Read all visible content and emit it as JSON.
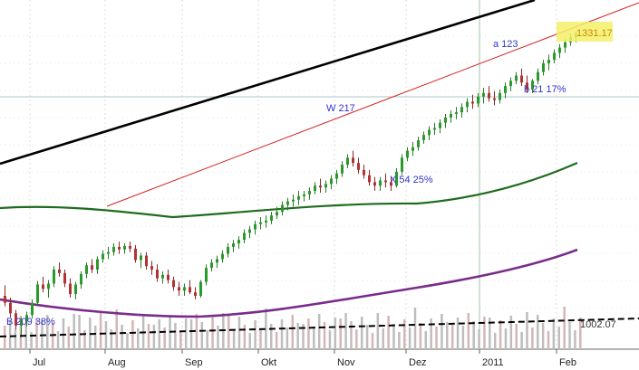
{
  "chart_data": {
    "type": "candlestick",
    "y_scale": {
      "price_top": 1331.17,
      "price_bottom": 1002.07
    },
    "x_ticks": [
      "Jul",
      "Aug",
      "Sep",
      "Okt",
      "Nov",
      "Dez",
      "2011",
      "Feb"
    ],
    "annotations": [
      {
        "id": "b209",
        "text": "B 209 38%"
      },
      {
        "id": "w217",
        "text": "W 217"
      },
      {
        "id": "x54",
        "text": "X 54 25%"
      },
      {
        "id": "a123",
        "text": "a 123"
      },
      {
        "id": "b21",
        "text": "b 21 17%"
      }
    ],
    "price_labels": [
      {
        "id": "last",
        "text": "1331.17",
        "highlight": "#f5f06a",
        "color": "#c58a00"
      },
      {
        "id": "ref",
        "text": "1002.07",
        "color": "#333333"
      }
    ],
    "ohlc": [
      [
        1030,
        1042,
        1018,
        1022
      ],
      [
        1022,
        1028,
        1005,
        1010
      ],
      [
        1010,
        1014,
        992,
        996
      ],
      [
        996,
        1005,
        985,
        1001
      ],
      [
        1001,
        1012,
        995,
        1008
      ],
      [
        1008,
        1026,
        1004,
        1022
      ],
      [
        1022,
        1047,
        1018,
        1043
      ],
      [
        1043,
        1052,
        1034,
        1038
      ],
      [
        1038,
        1048,
        1028,
        1044
      ],
      [
        1044,
        1064,
        1040,
        1060
      ],
      [
        1060,
        1068,
        1052,
        1056
      ],
      [
        1056,
        1060,
        1040,
        1044
      ],
      [
        1044,
        1050,
        1028,
        1032
      ],
      [
        1032,
        1046,
        1026,
        1043
      ],
      [
        1043,
        1058,
        1038,
        1055
      ],
      [
        1055,
        1068,
        1050,
        1065
      ],
      [
        1065,
        1072,
        1056,
        1060
      ],
      [
        1060,
        1075,
        1055,
        1072
      ],
      [
        1072,
        1082,
        1068,
        1078
      ],
      [
        1078,
        1086,
        1072,
        1080
      ],
      [
        1080,
        1090,
        1076,
        1086
      ],
      [
        1086,
        1092,
        1078,
        1083
      ],
      [
        1083,
        1090,
        1078,
        1087
      ],
      [
        1087,
        1092,
        1080,
        1084
      ],
      [
        1084,
        1088,
        1068,
        1071
      ],
      [
        1071,
        1079,
        1062,
        1076
      ],
      [
        1076,
        1080,
        1060,
        1064
      ],
      [
        1064,
        1070,
        1054,
        1060
      ],
      [
        1060,
        1066,
        1046,
        1050
      ],
      [
        1050,
        1058,
        1044,
        1054
      ],
      [
        1054,
        1060,
        1044,
        1048
      ],
      [
        1048,
        1052,
        1036,
        1040
      ],
      [
        1040,
        1046,
        1030,
        1036
      ],
      [
        1036,
        1044,
        1030,
        1040
      ],
      [
        1040,
        1048,
        1032,
        1034
      ],
      [
        1034,
        1040,
        1026,
        1030
      ],
      [
        1030,
        1048,
        1028,
        1046
      ],
      [
        1046,
        1066,
        1042,
        1062
      ],
      [
        1062,
        1072,
        1058,
        1068
      ],
      [
        1068,
        1076,
        1062,
        1072
      ],
      [
        1072,
        1082,
        1068,
        1078
      ],
      [
        1078,
        1090,
        1074,
        1086
      ],
      [
        1086,
        1094,
        1080,
        1090
      ],
      [
        1090,
        1098,
        1084,
        1094
      ],
      [
        1094,
        1106,
        1090,
        1102
      ],
      [
        1102,
        1110,
        1096,
        1106
      ],
      [
        1106,
        1116,
        1100,
        1112
      ],
      [
        1112,
        1120,
        1106,
        1114
      ],
      [
        1114,
        1122,
        1108,
        1116
      ],
      [
        1116,
        1126,
        1112,
        1122
      ],
      [
        1122,
        1132,
        1118,
        1126
      ],
      [
        1126,
        1138,
        1122,
        1134
      ],
      [
        1134,
        1142,
        1128,
        1138
      ],
      [
        1138,
        1146,
        1132,
        1140
      ],
      [
        1140,
        1150,
        1134,
        1144
      ],
      [
        1144,
        1150,
        1138,
        1146
      ],
      [
        1146,
        1154,
        1140,
        1150
      ],
      [
        1150,
        1160,
        1146,
        1156
      ],
      [
        1156,
        1164,
        1148,
        1154
      ],
      [
        1154,
        1162,
        1148,
        1158
      ],
      [
        1158,
        1168,
        1152,
        1164
      ],
      [
        1164,
        1174,
        1158,
        1170
      ],
      [
        1170,
        1184,
        1166,
        1180
      ],
      [
        1180,
        1192,
        1176,
        1188
      ],
      [
        1188,
        1196,
        1178,
        1182
      ],
      [
        1182,
        1188,
        1170,
        1174
      ],
      [
        1174,
        1180,
        1164,
        1168
      ],
      [
        1168,
        1174,
        1156,
        1160
      ],
      [
        1160,
        1166,
        1150,
        1156
      ],
      [
        1156,
        1166,
        1150,
        1162
      ],
      [
        1162,
        1170,
        1154,
        1160
      ],
      [
        1160,
        1166,
        1150,
        1156
      ],
      [
        1156,
        1176,
        1154,
        1172
      ],
      [
        1172,
        1192,
        1168,
        1188
      ],
      [
        1188,
        1200,
        1184,
        1196
      ],
      [
        1196,
        1206,
        1190,
        1200
      ],
      [
        1200,
        1212,
        1196,
        1208
      ],
      [
        1208,
        1218,
        1204,
        1214
      ],
      [
        1214,
        1224,
        1208,
        1220
      ],
      [
        1220,
        1228,
        1214,
        1222
      ],
      [
        1222,
        1232,
        1216,
        1228
      ],
      [
        1228,
        1238,
        1222,
        1234
      ],
      [
        1234,
        1242,
        1228,
        1238
      ],
      [
        1238,
        1246,
        1232,
        1240
      ],
      [
        1240,
        1250,
        1234,
        1246
      ],
      [
        1246,
        1256,
        1240,
        1252
      ],
      [
        1252,
        1260,
        1244,
        1250
      ],
      [
        1250,
        1262,
        1246,
        1258
      ],
      [
        1258,
        1268,
        1250,
        1262
      ],
      [
        1262,
        1270,
        1252,
        1256
      ],
      [
        1256,
        1264,
        1248,
        1254
      ],
      [
        1254,
        1266,
        1250,
        1262
      ],
      [
        1262,
        1274,
        1256,
        1270
      ],
      [
        1270,
        1280,
        1264,
        1276
      ],
      [
        1276,
        1286,
        1272,
        1282
      ],
      [
        1282,
        1290,
        1270,
        1274
      ],
      [
        1274,
        1282,
        1262,
        1266
      ],
      [
        1266,
        1278,
        1262,
        1276
      ],
      [
        1276,
        1290,
        1272,
        1286
      ],
      [
        1286,
        1300,
        1282,
        1296
      ],
      [
        1296,
        1306,
        1288,
        1300
      ],
      [
        1300,
        1312,
        1296,
        1308
      ],
      [
        1308,
        1318,
        1302,
        1314
      ],
      [
        1314,
        1324,
        1308,
        1320
      ],
      [
        1320,
        1330,
        1316,
        1326
      ],
      [
        1326,
        1332,
        1320,
        1331
      ]
    ]
  }
}
